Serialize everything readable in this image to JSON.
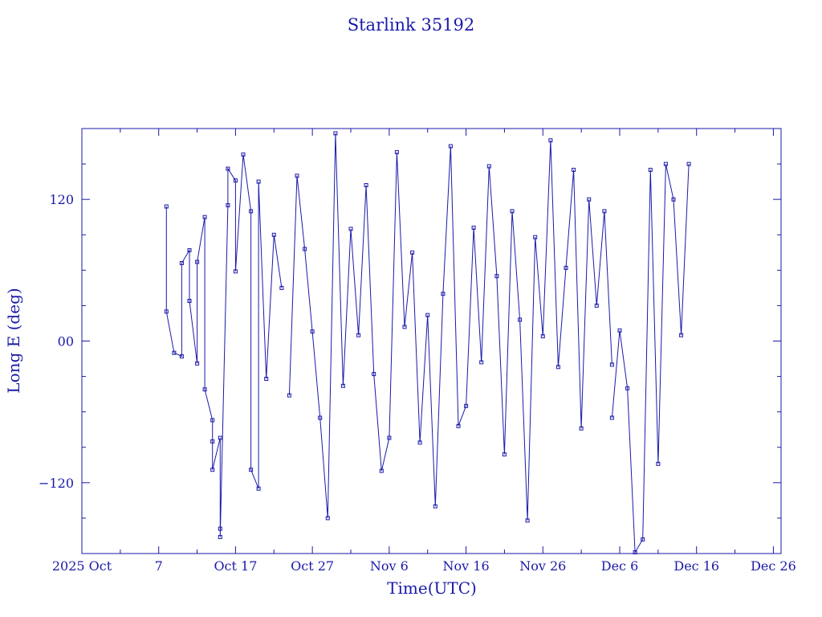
{
  "chart_data": {
    "type": "scatter",
    "title": "Starlink 35192",
    "xlabel": "Time(UTC)",
    "ylabel": "Long E (deg)",
    "x_range": [
      "2025-09-27",
      "2025-12-27"
    ],
    "ylim": [
      -180,
      180
    ],
    "grid": false,
    "connected": true,
    "x_tick_labels": [
      {
        "date": "2025-09-27",
        "label": "2025 Oct"
      },
      {
        "date": "2025-10-07",
        "label": "7"
      },
      {
        "date": "2025-10-17",
        "label": "Oct 17"
      },
      {
        "date": "2025-10-27",
        "label": "Oct 27"
      },
      {
        "date": "2025-11-06",
        "label": "Nov  6"
      },
      {
        "date": "2025-11-16",
        "label": "Nov 16"
      },
      {
        "date": "2025-11-26",
        "label": "Nov 26"
      },
      {
        "date": "2025-12-06",
        "label": "Dec  6"
      },
      {
        "date": "2025-12-16",
        "label": "Dec 16"
      },
      {
        "date": "2025-12-26",
        "label": "Dec 26"
      }
    ],
    "y_tick_labels": [
      {
        "value": 120,
        "label": "120"
      },
      {
        "value": 0,
        "label": "00"
      },
      {
        "value": -120,
        "label": "−120"
      }
    ],
    "series": [
      {
        "x": [
          "2025-10-08",
          "2025-10-08",
          "2025-10-09",
          "2025-10-10",
          "2025-10-10",
          "2025-10-11",
          "2025-10-11",
          "2025-10-12",
          "2025-10-12",
          "2025-10-13",
          "2025-10-13",
          "2025-10-14",
          "2025-10-14",
          "2025-10-14",
          "2025-10-15",
          "2025-10-15",
          "2025-10-15",
          "2025-10-16",
          "2025-10-16",
          "2025-10-17",
          "2025-10-17",
          "2025-10-18",
          "2025-10-19",
          "2025-10-19",
          "2025-10-20",
          "2025-10-20",
          "2025-10-21",
          "2025-10-22",
          "2025-10-23"
        ],
        "y": [
          114,
          25,
          -10,
          -13,
          66,
          77,
          34,
          -19,
          67,
          105,
          -41,
          -67,
          -85,
          -109,
          -82,
          -159,
          -166,
          115,
          146,
          136,
          59,
          158,
          110,
          -109,
          -125,
          135,
          -32,
          90,
          45
        ],
        "color": "#1a1aa8"
      },
      {
        "x": [
          "2025-10-24",
          "2025-10-25",
          "2025-10-26",
          "2025-10-27",
          "2025-10-28",
          "2025-10-29",
          "2025-10-30",
          "2025-10-31",
          "2025-11-01",
          "2025-11-02",
          "2025-11-03",
          "2025-11-04",
          "2025-11-05",
          "2025-11-06",
          "2025-11-07",
          "2025-11-08",
          "2025-11-09",
          "2025-11-10",
          "2025-11-11",
          "2025-11-12",
          "2025-11-13",
          "2025-11-14",
          "2025-11-15",
          "2025-11-16",
          "2025-11-17",
          "2025-11-18",
          "2025-11-19",
          "2025-11-20",
          "2025-11-21",
          "2025-11-22",
          "2025-11-23",
          "2025-11-24",
          "2025-11-25",
          "2025-11-26",
          "2025-11-27",
          "2025-11-28",
          "2025-11-29",
          "2025-11-30",
          "2025-12-01",
          "2025-12-02",
          "2025-12-03",
          "2025-12-04",
          "2025-12-05"
        ],
        "y": [
          -46,
          140,
          78,
          8,
          -65,
          -150,
          176,
          -38,
          95,
          5,
          132,
          -28,
          -110,
          -82,
          160,
          12,
          75,
          -86,
          22,
          -140,
          40,
          165,
          -72,
          -55,
          96,
          -18,
          148,
          55,
          -96,
          110,
          18,
          -152,
          88,
          4,
          170,
          -22,
          62,
          145,
          -74,
          120,
          30,
          110,
          -20
        ],
        "color": "#1a1aa8"
      },
      {
        "x": [
          "2025-12-05",
          "2025-12-06",
          "2025-12-07",
          "2025-12-08",
          "2025-12-09",
          "2025-12-10",
          "2025-12-11",
          "2025-12-12",
          "2025-12-13",
          "2025-12-14",
          "2025-12-15"
        ],
        "y": [
          -65,
          9,
          -40,
          -179,
          -168,
          145,
          -104,
          150,
          120,
          5,
          150
        ],
        "color": "#1a1aa8"
      }
    ]
  }
}
